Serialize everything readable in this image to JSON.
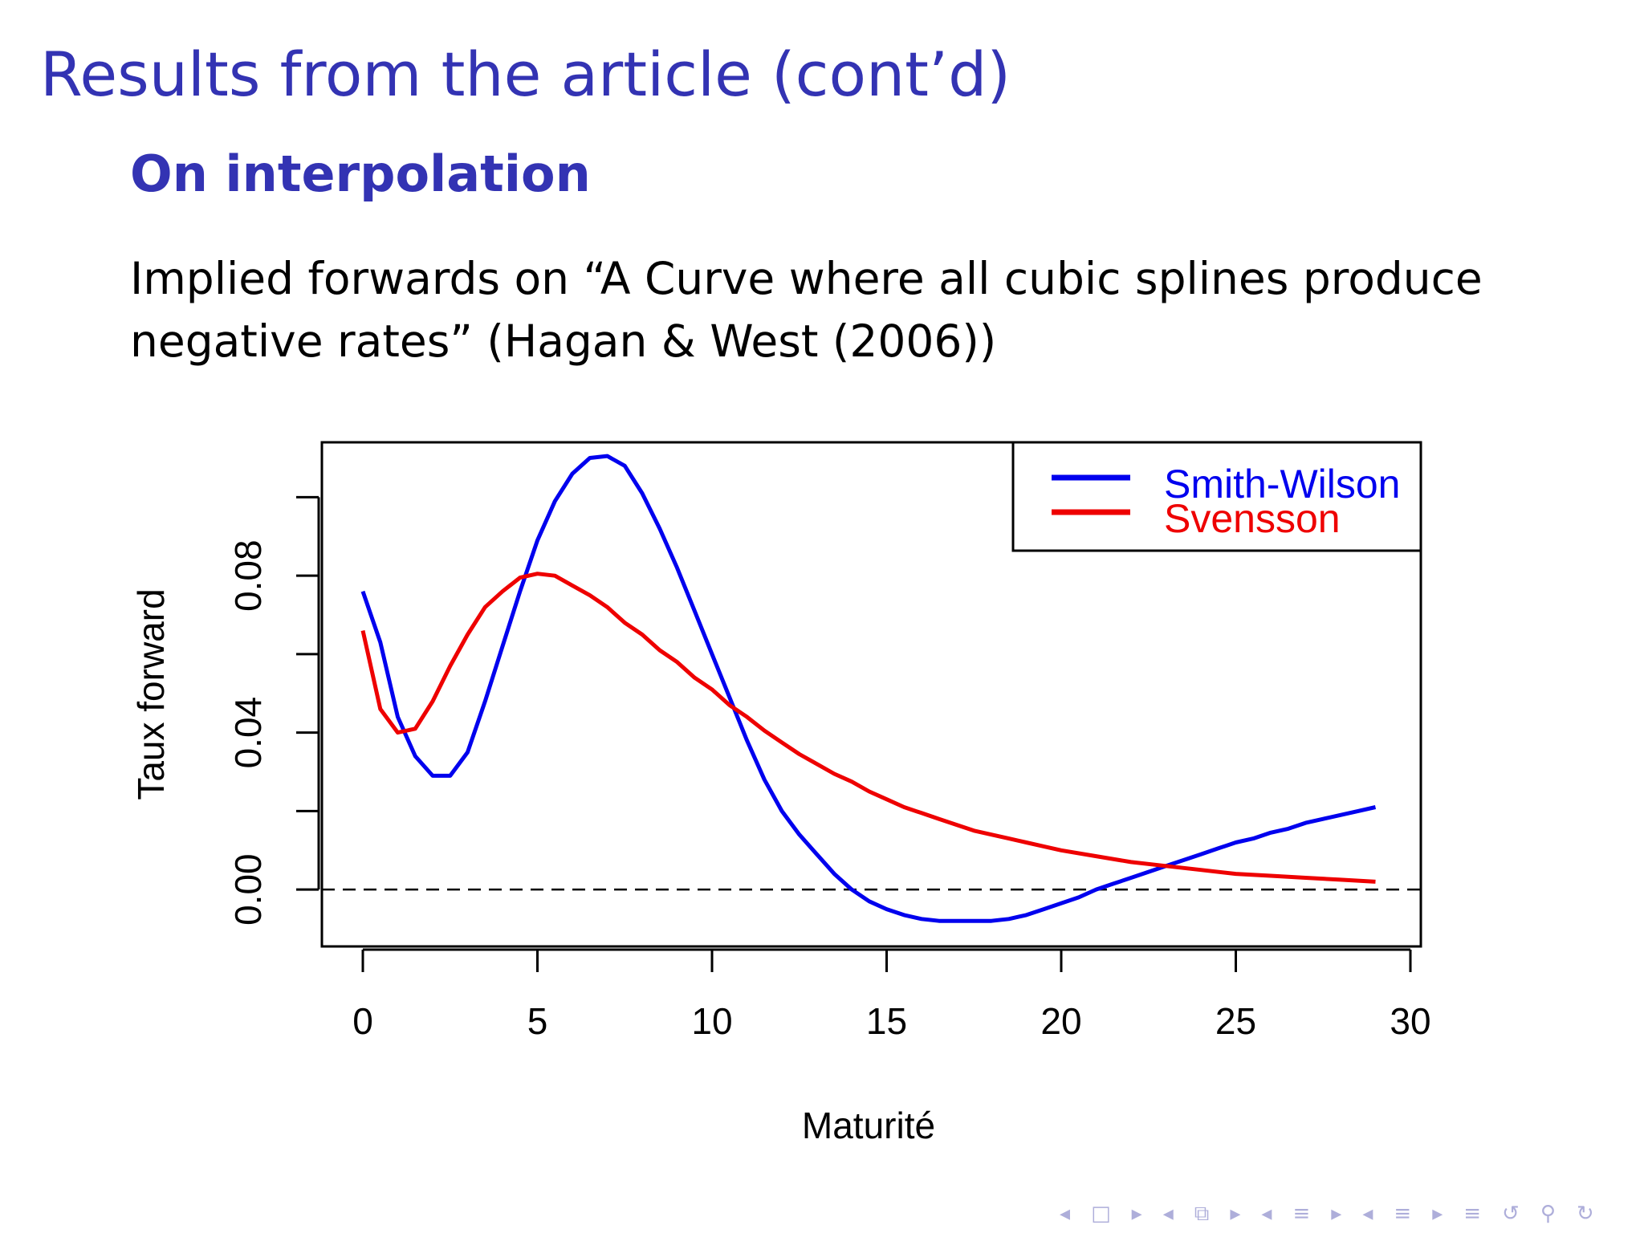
{
  "slide": {
    "title": "Results from the article (cont’d)",
    "subtitle": "On interpolation",
    "body": "Implied forwards on “A Curve where all cubic splines produce negative rates” (Hagan & West (2006))"
  },
  "chart_data": {
    "type": "line",
    "title": "",
    "xlabel": "Maturité",
    "ylabel": "Taux forward",
    "xlim": [
      0,
      30
    ],
    "ylim": [
      -0.0145,
      0.114
    ],
    "xticks": [
      0,
      5,
      10,
      15,
      20,
      25,
      30
    ],
    "xtick_labels": [
      "0",
      "5",
      "10",
      "15",
      "20",
      "25",
      "30"
    ],
    "yticks": [
      0,
      0.02,
      0.04,
      0.06,
      0.08,
      0.1
    ],
    "ytick_labels": [
      "0.00",
      "",
      "0.04",
      "",
      "0.08",
      ""
    ],
    "reference_line": {
      "y": 0,
      "style": "dashed"
    },
    "grid": false,
    "legend_position": "top-right",
    "series": [
      {
        "name": "Smith-Wilson",
        "color": "#0000ee",
        "x": [
          0,
          0.5,
          1,
          1.5,
          2,
          2.5,
          3,
          3.5,
          4,
          4.5,
          5,
          5.5,
          6,
          6.5,
          7,
          7.5,
          8,
          8.5,
          9,
          9.5,
          10,
          10.5,
          11,
          11.5,
          12,
          12.5,
          13,
          13.5,
          14,
          14.5,
          15,
          15.5,
          16,
          16.5,
          17,
          17.5,
          18,
          18.5,
          19,
          19.5,
          20,
          20.5,
          21,
          21.5,
          22,
          22.5,
          23,
          23.5,
          24,
          24.5,
          25,
          25.5,
          26,
          26.5,
          27,
          27.5,
          28,
          28.5,
          29
        ],
        "values": [
          0.076,
          0.063,
          0.044,
          0.034,
          0.029,
          0.029,
          0.035,
          0.048,
          0.062,
          0.076,
          0.089,
          0.099,
          0.106,
          0.11,
          0.1105,
          0.108,
          0.101,
          0.092,
          0.082,
          0.071,
          0.06,
          0.049,
          0.038,
          0.028,
          0.02,
          0.014,
          0.009,
          0.004,
          0.0,
          -0.003,
          -0.005,
          -0.0065,
          -0.0075,
          -0.008,
          -0.008,
          -0.008,
          -0.008,
          -0.0075,
          -0.0065,
          -0.005,
          -0.0035,
          -0.002,
          0.0,
          0.0015,
          0.003,
          0.0045,
          0.006,
          0.0075,
          0.009,
          0.0105,
          0.012,
          0.013,
          0.0145,
          0.0155,
          0.017,
          0.018,
          0.019,
          0.02,
          0.021
        ]
      },
      {
        "name": "Svensson",
        "color": "#ee0000",
        "x": [
          0,
          0.5,
          1,
          1.5,
          2,
          2.5,
          3,
          3.5,
          4,
          4.5,
          5,
          5.5,
          6,
          6.5,
          7,
          7.5,
          8,
          8.5,
          9,
          9.5,
          10,
          10.5,
          11,
          11.5,
          12,
          12.5,
          13,
          13.5,
          14,
          14.5,
          15,
          15.5,
          16,
          16.5,
          17,
          17.5,
          18,
          18.5,
          19,
          19.5,
          20,
          21,
          22,
          23,
          24,
          25,
          26,
          27,
          28,
          29
        ],
        "values": [
          0.066,
          0.046,
          0.04,
          0.041,
          0.048,
          0.057,
          0.065,
          0.072,
          0.076,
          0.0795,
          0.0805,
          0.08,
          0.0775,
          0.075,
          0.072,
          0.068,
          0.065,
          0.061,
          0.058,
          0.054,
          0.051,
          0.047,
          0.044,
          0.0405,
          0.0375,
          0.0345,
          0.032,
          0.0295,
          0.0275,
          0.025,
          0.023,
          0.021,
          0.0195,
          0.018,
          0.0165,
          0.015,
          0.014,
          0.013,
          0.012,
          0.011,
          0.01,
          0.0085,
          0.007,
          0.006,
          0.005,
          0.004,
          0.0035,
          0.003,
          0.0025,
          0.002
        ]
      }
    ]
  },
  "navigation": {
    "symbols": [
      "◂",
      "□",
      "▸",
      "◂",
      "⧉",
      "▸",
      "◂",
      "≡",
      "▸",
      "◂",
      "≡",
      "▸",
      "≡",
      "↺",
      "⚲",
      "↻"
    ]
  }
}
